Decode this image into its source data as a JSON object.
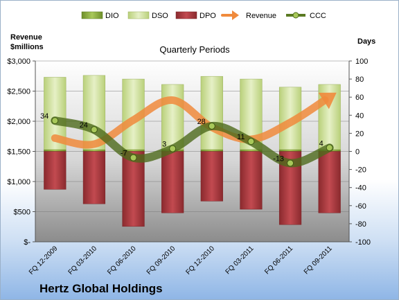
{
  "chart_data": {
    "type": "bar",
    "subtitle": "Quarterly Periods",
    "company": "Hertz Global Holdings",
    "left_axis_label_line1": "Revenue",
    "left_axis_label_line2": "$millions",
    "right_axis_label": "Days",
    "left_ylim": [
      0,
      3000
    ],
    "right_ylim": [
      -100,
      100
    ],
    "left_ticks": [
      {
        "value": 3000,
        "label": "$3,000"
      },
      {
        "value": 2500,
        "label": "$2,500"
      },
      {
        "value": 2000,
        "label": "$2,000"
      },
      {
        "value": 1500,
        "label": "$1,500"
      },
      {
        "value": 1000,
        "label": "$1,000"
      },
      {
        "value": 500,
        "label": "$500"
      },
      {
        "value": 0,
        "label": "$-"
      }
    ],
    "right_ticks": [
      100,
      80,
      60,
      40,
      20,
      0,
      -20,
      -40,
      -60,
      -80,
      -100
    ],
    "categories": [
      "FQ 12-2009",
      "FQ 03-2010",
      "FQ 06-2010",
      "FQ 09-2010",
      "FQ 12-2010",
      "FQ 03-2011",
      "FQ 06-2011",
      "FQ 09-2011"
    ],
    "legend": [
      {
        "name": "DIO",
        "kind": "bar",
        "color": "#86a83c"
      },
      {
        "name": "DSO",
        "kind": "bar",
        "color": "#d4e4a8"
      },
      {
        "name": "DPO",
        "kind": "bar",
        "color": "#a33a3e"
      },
      {
        "name": "Revenue",
        "kind": "arrow",
        "color": "#f08a3c"
      },
      {
        "name": "CCC",
        "kind": "marker-line",
        "color": "#5a7a22"
      }
    ],
    "series": [
      {
        "name": "DIO",
        "values": [
          2,
          2,
          2,
          2,
          2,
          2,
          2,
          2
        ]
      },
      {
        "name": "DSO",
        "values": [
          80,
          82,
          78,
          72,
          81,
          78,
          69,
          72
        ]
      },
      {
        "name": "DPO",
        "values": [
          -42,
          -58,
          -83,
          -68,
          -55,
          -64,
          -81,
          -68
        ]
      },
      {
        "name": "CCC",
        "values": [
          34,
          24,
          -7,
          3,
          28,
          11,
          -13,
          4
        ]
      },
      {
        "name": "Revenue",
        "values": [
          1720,
          1620,
          2020,
          2350,
          1900,
          1700,
          1980,
          2400
        ]
      }
    ],
    "ccc_labels": [
      "34",
      "24",
      "-7",
      "3",
      "28",
      "11",
      "-13",
      "4"
    ]
  }
}
